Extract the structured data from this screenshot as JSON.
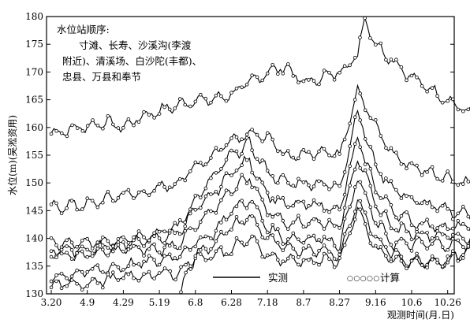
{
  "chart_data": {
    "type": "line",
    "xlabel": "观测时间(月.日)",
    "ylabel": "水位(m)(吴淞资用)",
    "ylim": [
      130,
      180
    ],
    "yticks": [
      130,
      135,
      140,
      145,
      150,
      155,
      160,
      165,
      170,
      175,
      180
    ],
    "xticks": [
      "3.20",
      "4.9",
      "4.29",
      "5.19",
      "6.8",
      "6.28",
      "7.18",
      "8.7",
      "8.27",
      "9.16",
      "10.6",
      "10.26"
    ],
    "note": {
      "heading": "水位站顺序:",
      "lines": [
        "寸滩、长寿、沙溪沟(李渡",
        "附近)、清溪场、白沙陀(丰都)、",
        "忠县、万县和奉节"
      ]
    },
    "legend": {
      "measured": "实测",
      "computed": "计算",
      "computed_glyphs": "○○○○○"
    },
    "grid": false,
    "series": [
      {
        "name": "寸滩",
        "points": [
          [
            0,
            159
          ],
          [
            0.8,
            160
          ],
          [
            1.5,
            161
          ],
          [
            2,
            160
          ],
          [
            2.5,
            162
          ],
          [
            3,
            163
          ],
          [
            3.5,
            164
          ],
          [
            4,
            165
          ],
          [
            4.5,
            165
          ],
          [
            5,
            166
          ],
          [
            5.5,
            168
          ],
          [
            6,
            170
          ],
          [
            6.5,
            171
          ],
          [
            7,
            168
          ],
          [
            7.5,
            169
          ],
          [
            8,
            170
          ],
          [
            8.5,
            173
          ],
          [
            8.7,
            180
          ],
          [
            9,
            175
          ],
          [
            9.5,
            172
          ],
          [
            10,
            169
          ],
          [
            10.5,
            167
          ],
          [
            11,
            165
          ],
          [
            11.5,
            163
          ],
          [
            12,
            162
          ]
        ]
      },
      {
        "name": "长寿",
        "points": [
          [
            0,
            145.5
          ],
          [
            0.5,
            146
          ],
          [
            1,
            146
          ],
          [
            1.5,
            147
          ],
          [
            2,
            148
          ],
          [
            2.5,
            148
          ],
          [
            3,
            149
          ],
          [
            3.5,
            150
          ],
          [
            4,
            153
          ],
          [
            4.5,
            155
          ],
          [
            5,
            158
          ],
          [
            5.5,
            159
          ],
          [
            6,
            158
          ],
          [
            6.5,
            155
          ],
          [
            7,
            155
          ],
          [
            7.5,
            156
          ],
          [
            8,
            155
          ],
          [
            8.5,
            167
          ],
          [
            9,
            160
          ],
          [
            9.5,
            155
          ],
          [
            10,
            153
          ],
          [
            10.5,
            152
          ],
          [
            11,
            151
          ],
          [
            11.5,
            150
          ],
          [
            12,
            149
          ]
        ]
      },
      {
        "name": "沙溪沟",
        "points": [
          [
            0,
            139
          ],
          [
            1,
            139
          ],
          [
            2,
            140
          ],
          [
            3,
            141
          ],
          [
            3.5,
            142
          ],
          [
            4,
            147
          ],
          [
            4.5,
            151
          ],
          [
            5,
            155
          ],
          [
            5.5,
            157
          ],
          [
            6,
            152
          ],
          [
            6.5,
            150
          ],
          [
            7,
            150
          ],
          [
            7.5,
            150
          ],
          [
            8,
            149
          ],
          [
            8.5,
            163
          ],
          [
            9,
            153
          ],
          [
            9.5,
            149
          ],
          [
            10,
            147
          ],
          [
            11,
            145
          ],
          [
            12,
            144
          ]
        ]
      },
      {
        "name": "清溪场",
        "points": [
          [
            0,
            138
          ],
          [
            1,
            138
          ],
          [
            2,
            139
          ],
          [
            3,
            140
          ],
          [
            3.5,
            141
          ],
          [
            4,
            145
          ],
          [
            4.5,
            148
          ],
          [
            5,
            152
          ],
          [
            5.5,
            154
          ],
          [
            6,
            148
          ],
          [
            6.5,
            146
          ],
          [
            7,
            146
          ],
          [
            7.5,
            146
          ],
          [
            8,
            145
          ],
          [
            8.5,
            158
          ],
          [
            9,
            149
          ],
          [
            9.5,
            145
          ],
          [
            10,
            143
          ],
          [
            11,
            142
          ],
          [
            12,
            142
          ]
        ]
      },
      {
        "name": "白沙陀",
        "points": [
          [
            0,
            137
          ],
          [
            1,
            137
          ],
          [
            2,
            138
          ],
          [
            3,
            138
          ],
          [
            3.5,
            139
          ],
          [
            4,
            142
          ],
          [
            4.5,
            145
          ],
          [
            5,
            149
          ],
          [
            5.5,
            151
          ],
          [
            6,
            145
          ],
          [
            6.5,
            143
          ],
          [
            7,
            143
          ],
          [
            7.5,
            143
          ],
          [
            8,
            142
          ],
          [
            8.5,
            155
          ],
          [
            9,
            146
          ],
          [
            9.5,
            142
          ],
          [
            10,
            141
          ],
          [
            11,
            140.5
          ],
          [
            12,
            140
          ]
        ]
      },
      {
        "name": "忠县",
        "points": [
          [
            0,
            133
          ],
          [
            1,
            134
          ],
          [
            2,
            135
          ],
          [
            3,
            136
          ],
          [
            3.5,
            137
          ],
          [
            4,
            139
          ],
          [
            4.5,
            141
          ],
          [
            5,
            145
          ],
          [
            5.5,
            147
          ],
          [
            6,
            142
          ],
          [
            6.5,
            140
          ],
          [
            7,
            140
          ],
          [
            7.5,
            140
          ],
          [
            8,
            139
          ],
          [
            8.5,
            151
          ],
          [
            9,
            143
          ],
          [
            9.5,
            139
          ],
          [
            10,
            139
          ],
          [
            11,
            139
          ],
          [
            12,
            139
          ]
        ]
      },
      {
        "name": "万县",
        "points": [
          [
            0,
            131.5
          ],
          [
            1,
            132
          ],
          [
            2,
            133
          ],
          [
            3,
            133.5
          ],
          [
            3.6,
            134
          ],
          [
            4,
            137
          ],
          [
            4.5,
            139
          ],
          [
            5,
            142
          ],
          [
            5.5,
            144
          ],
          [
            6,
            140
          ],
          [
            6.5,
            138
          ],
          [
            7,
            138
          ],
          [
            7.5,
            138
          ],
          [
            8,
            137
          ],
          [
            8.5,
            147
          ],
          [
            9,
            140
          ],
          [
            9.5,
            137
          ],
          [
            10,
            136
          ],
          [
            11,
            136
          ],
          [
            12,
            139
          ]
        ]
      },
      {
        "name": "奉节",
        "points": [
          [
            3.6,
            130
          ],
          [
            3.8,
            135
          ],
          [
            4,
            136.5
          ],
          [
            4.5,
            137
          ],
          [
            5,
            138
          ],
          [
            5.5,
            140
          ],
          [
            6,
            137
          ],
          [
            6.5,
            136
          ],
          [
            7,
            136
          ],
          [
            7.5,
            136
          ],
          [
            8,
            136
          ],
          [
            8.5,
            145
          ],
          [
            9,
            138
          ],
          [
            9.5,
            136
          ],
          [
            10,
            135.5
          ],
          [
            11,
            136
          ],
          [
            12,
            139
          ]
        ]
      }
    ]
  }
}
